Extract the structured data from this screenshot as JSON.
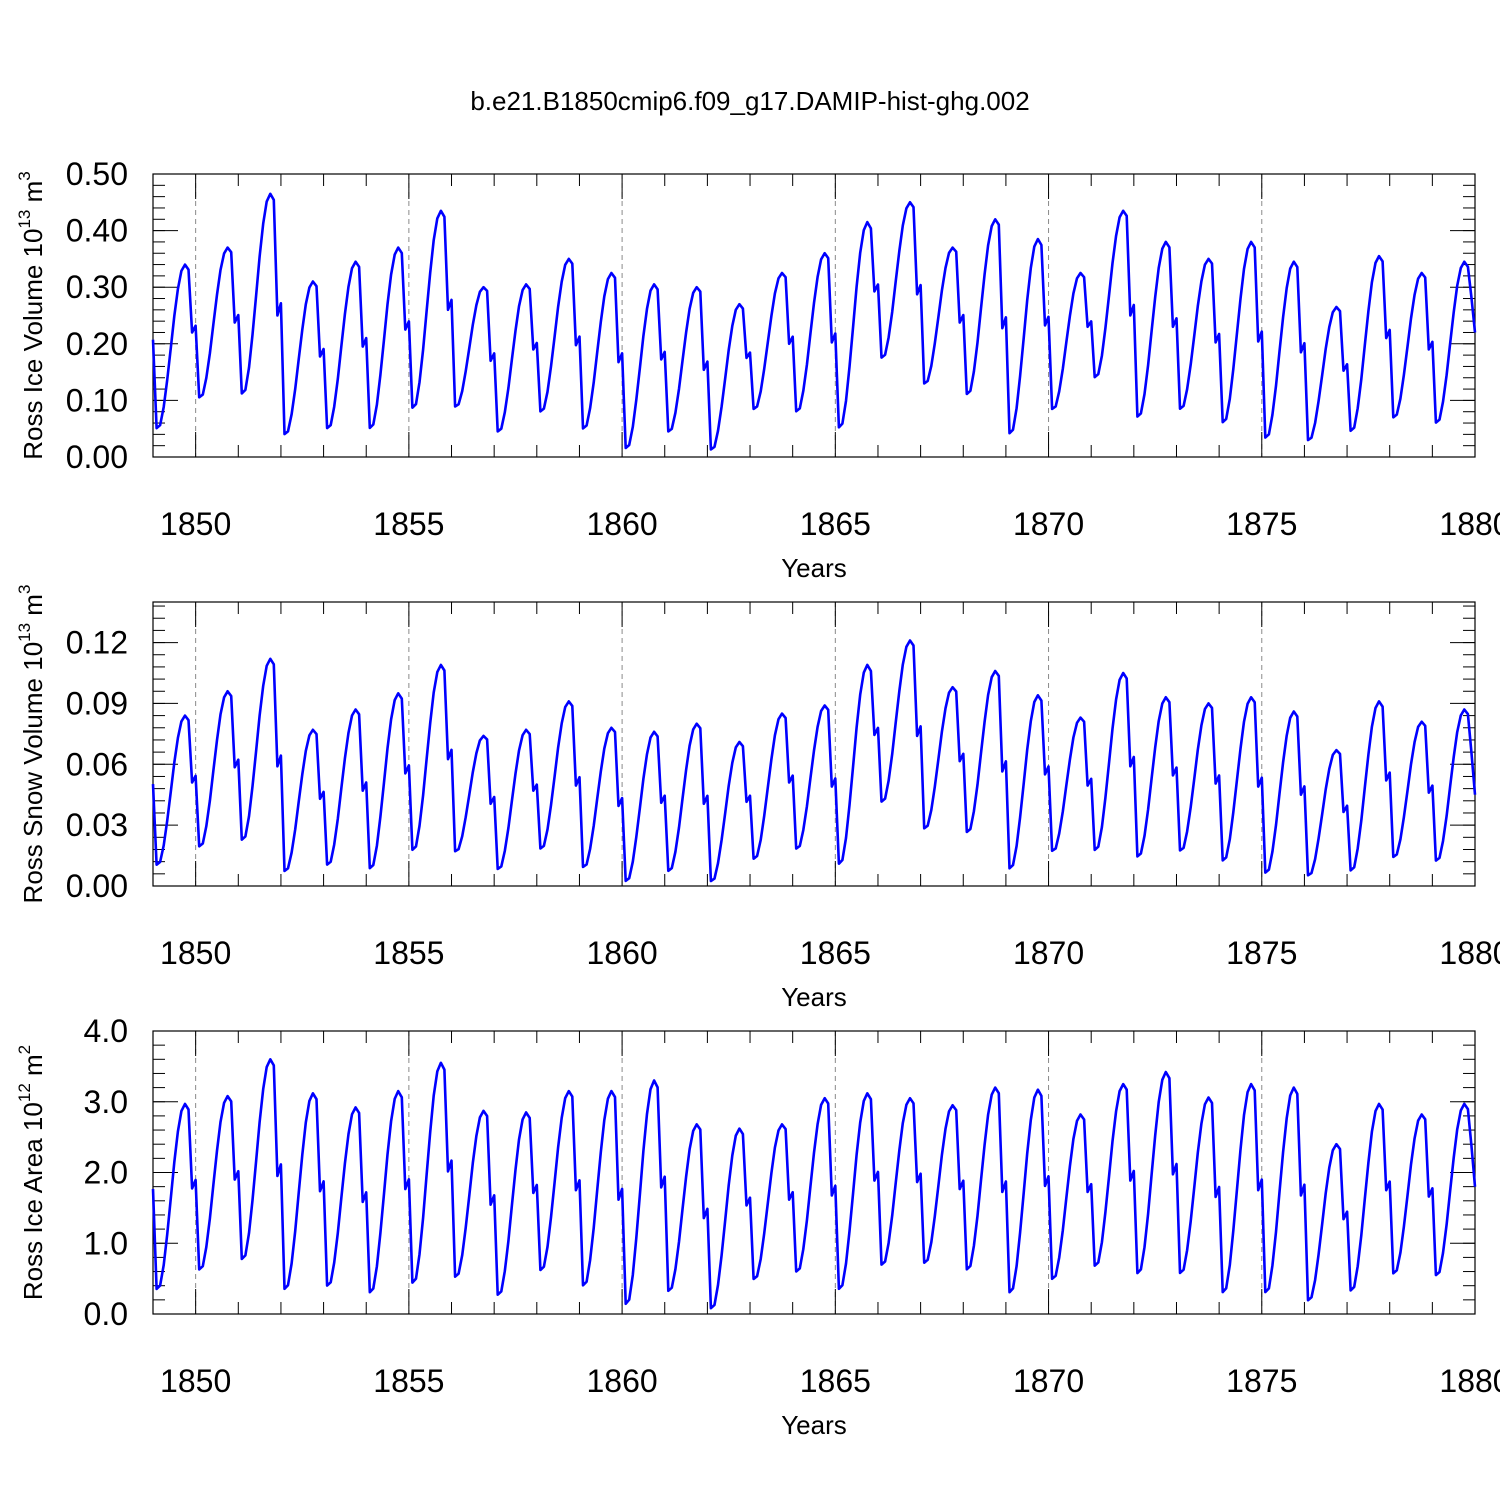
{
  "figure": {
    "title": "b.e21.B1850cmip6.f09_g17.DAMIP-hist-ghg.002",
    "line_color": "#0000ff"
  },
  "chart_data": [
    {
      "type": "line",
      "ylabel_prefix": "Ross Ice Volume 10",
      "ylabel_exp": "13",
      "ylabel_unit": " m",
      "ylabel_unit_exp": "3",
      "xlabel": "Years",
      "xlim": [
        1849,
        1880
      ],
      "ylim": [
        0.0,
        0.5
      ],
      "x_ticks": [
        1850,
        1855,
        1860,
        1865,
        1870,
        1875,
        1880
      ],
      "x_tick_labels": [
        "1850",
        "1855",
        "1860",
        "1865",
        "1870",
        "1875",
        "1880"
      ],
      "y_ticks": [
        0.0,
        0.1,
        0.2,
        0.3,
        0.4,
        0.5
      ],
      "y_tick_labels": [
        "0.00",
        "0.10",
        "0.20",
        "0.30",
        "0.40",
        "0.50"
      ],
      "y_minor_step": 0.02,
      "grid_x": [
        1850,
        1855,
        1860,
        1865,
        1870,
        1875
      ],
      "series": [
        {
          "name": "Ross Ice Volume",
          "min": [
            0.045,
            0.1,
            0.105,
            0.035,
            0.045,
            0.045,
            0.08,
            0.085,
            0.04,
            0.075,
            0.045,
            0.01,
            0.04,
            0.008,
            0.08,
            0.075,
            0.045,
            0.17,
            0.125,
            0.105,
            0.035,
            0.08,
            0.135,
            0.065,
            0.08,
            0.055,
            0.028,
            0.025,
            0.04,
            0.065,
            0.055
          ],
          "max": [
            0.34,
            0.37,
            0.465,
            0.31,
            0.345,
            0.37,
            0.435,
            0.3,
            0.305,
            0.35,
            0.325,
            0.305,
            0.3,
            0.27,
            0.325,
            0.36,
            0.415,
            0.45,
            0.37,
            0.42,
            0.385,
            0.325,
            0.435,
            0.38,
            0.35,
            0.38,
            0.345,
            0.265,
            0.355,
            0.325,
            0.345
          ],
          "end_value": 0.22
        }
      ]
    },
    {
      "type": "line",
      "ylabel_prefix": "Ross Snow Volume 10",
      "ylabel_exp": "13",
      "ylabel_unit": " m",
      "ylabel_unit_exp": "3",
      "xlabel": "Years",
      "xlim": [
        1849,
        1880
      ],
      "ylim": [
        0.0,
        0.14
      ],
      "x_ticks": [
        1850,
        1855,
        1860,
        1865,
        1870,
        1875,
        1880
      ],
      "x_tick_labels": [
        "1850",
        "1855",
        "1860",
        "1865",
        "1870",
        "1875",
        "1880"
      ],
      "y_ticks": [
        0.0,
        0.03,
        0.06,
        0.09,
        0.12
      ],
      "y_tick_labels": [
        "0.00",
        "0.03",
        "0.06",
        "0.09",
        "0.12"
      ],
      "y_minor_step": 0.006,
      "grid_x": [
        1850,
        1855,
        1860,
        1865,
        1870,
        1875
      ],
      "series": [
        {
          "name": "Ross Snow Volume",
          "min": [
            0.009,
            0.018,
            0.021,
            0.006,
            0.009,
            0.007,
            0.016,
            0.016,
            0.007,
            0.017,
            0.008,
            0.001,
            0.006,
            0.001,
            0.012,
            0.017,
            0.009,
            0.04,
            0.027,
            0.025,
            0.007,
            0.016,
            0.016,
            0.013,
            0.016,
            0.011,
            0.005,
            0.004,
            0.006,
            0.013,
            0.011
          ],
          "max": [
            0.084,
            0.096,
            0.112,
            0.077,
            0.087,
            0.095,
            0.109,
            0.074,
            0.077,
            0.091,
            0.078,
            0.076,
            0.08,
            0.071,
            0.085,
            0.089,
            0.109,
            0.121,
            0.098,
            0.106,
            0.094,
            0.083,
            0.105,
            0.093,
            0.09,
            0.093,
            0.086,
            0.067,
            0.091,
            0.081,
            0.087
          ],
          "end_value": 0.045
        }
      ]
    },
    {
      "type": "line",
      "ylabel_prefix": "Ross Ice Area 10",
      "ylabel_exp": "12",
      "ylabel_unit": " m",
      "ylabel_unit_exp": "2",
      "xlabel": "Years",
      "xlim": [
        1849,
        1880
      ],
      "ylim": [
        0.0,
        4.0
      ],
      "x_ticks": [
        1850,
        1855,
        1860,
        1865,
        1870,
        1875,
        1880
      ],
      "x_tick_labels": [
        "1850",
        "1855",
        "1860",
        "1865",
        "1870",
        "1875",
        "1880"
      ],
      "y_ticks": [
        0.0,
        1.0,
        2.0,
        3.0,
        4.0
      ],
      "y_tick_labels": [
        "0.0",
        "1.0",
        "2.0",
        "3.0",
        "4.0"
      ],
      "y_minor_step": 0.2,
      "grid_x": [
        1850,
        1855,
        1860,
        1865,
        1870,
        1875
      ],
      "series": [
        {
          "name": "Ross Ice Area",
          "min": [
            0.3,
            0.58,
            0.72,
            0.3,
            0.35,
            0.25,
            0.38,
            0.48,
            0.22,
            0.57,
            0.35,
            0.08,
            0.28,
            0.03,
            0.45,
            0.55,
            0.3,
            0.65,
            0.68,
            0.58,
            0.25,
            0.45,
            0.63,
            0.52,
            0.53,
            0.25,
            0.25,
            0.15,
            0.28,
            0.53,
            0.5
          ],
          "max": [
            2.97,
            3.08,
            3.6,
            3.12,
            2.92,
            3.15,
            3.55,
            2.87,
            2.85,
            3.15,
            3.15,
            3.3,
            2.68,
            2.62,
            2.68,
            3.05,
            3.12,
            3.05,
            2.95,
            3.2,
            3.17,
            2.82,
            3.25,
            3.42,
            3.06,
            3.25,
            3.2,
            2.4,
            2.97,
            2.82,
            2.97
          ],
          "end_value": 1.8
        }
      ]
    }
  ]
}
